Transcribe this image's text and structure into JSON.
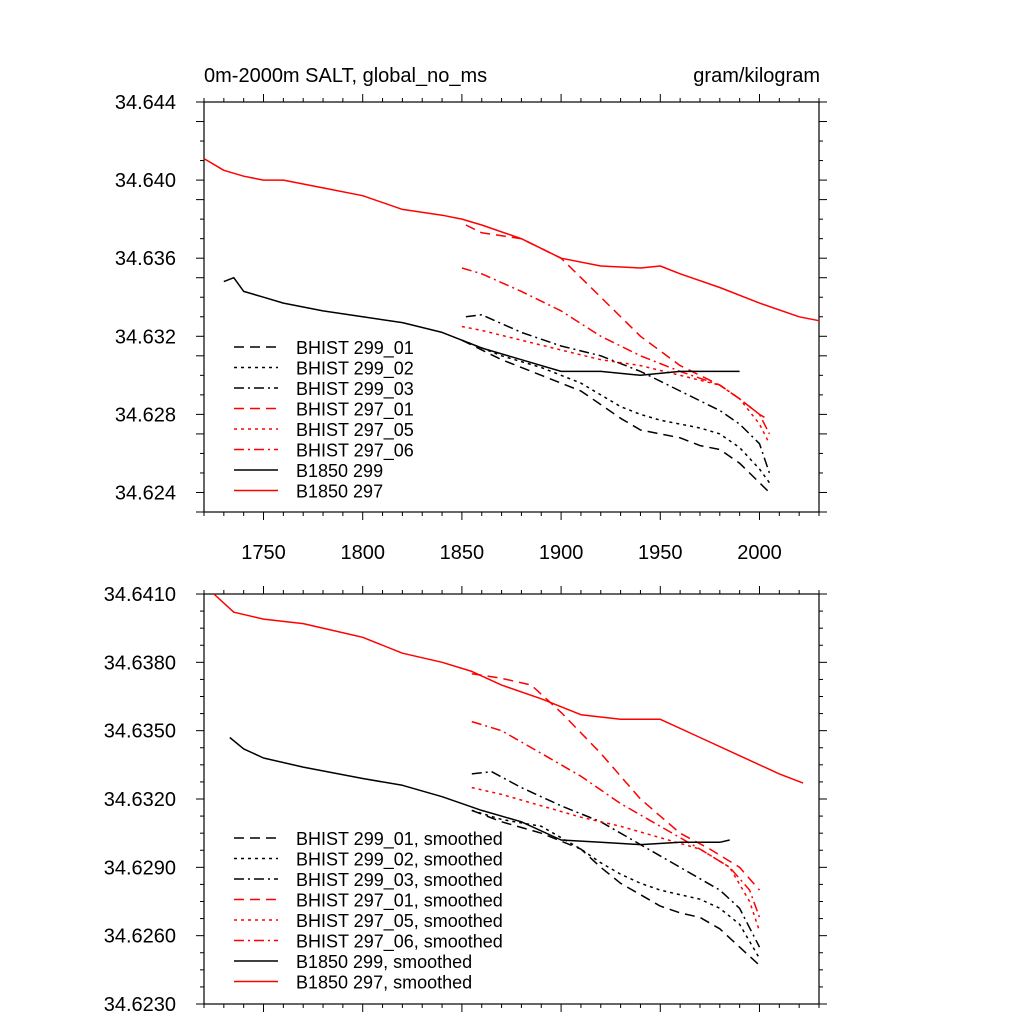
{
  "chart_data": [
    {
      "type": "line",
      "title": "0m-2000m SALT, global_no_ms",
      "units": "gram/kilogram",
      "xlim": [
        1720,
        2030
      ],
      "ylim": [
        34.623,
        34.644
      ],
      "xticks": [
        1750,
        1800,
        1850,
        1900,
        1950,
        2000
      ],
      "yticks": [
        34.624,
        34.628,
        34.632,
        34.636,
        34.64,
        34.644
      ],
      "ytick_labels": [
        "34.624",
        "34.628",
        "34.632",
        "34.636",
        "34.640",
        "34.644"
      ],
      "legend_position": "bottom-left",
      "series": [
        {
          "name": "BHIST 299_01",
          "color": "#000000",
          "dash": "dash",
          "x": [
            1850,
            1870,
            1890,
            1910,
            1920,
            1930,
            1940,
            1950,
            1960,
            1970,
            1980,
            1990,
            2000,
            2005
          ],
          "y": [
            34.6318,
            34.6308,
            34.63,
            34.6292,
            34.6285,
            34.6278,
            34.6272,
            34.627,
            34.6268,
            34.6264,
            34.6262,
            34.6255,
            34.6245,
            34.624
          ]
        },
        {
          "name": "BHIST 299_02",
          "color": "#000000",
          "dash": "dot",
          "x": [
            1850,
            1870,
            1890,
            1910,
            1920,
            1930,
            1940,
            1950,
            1960,
            1970,
            1980,
            1990,
            2000,
            2005
          ],
          "y": [
            34.6318,
            34.631,
            34.6304,
            34.6296,
            34.629,
            34.6284,
            34.628,
            34.6277,
            34.6275,
            34.6273,
            34.627,
            34.6263,
            34.6252,
            34.6245
          ]
        },
        {
          "name": "BHIST 299_03",
          "color": "#000000",
          "dash": "dashdot",
          "x": [
            1852,
            1860,
            1880,
            1900,
            1920,
            1940,
            1960,
            1980,
            1990,
            2000,
            2005
          ],
          "y": [
            34.633,
            34.6331,
            34.6322,
            34.6315,
            34.631,
            34.6302,
            34.6292,
            34.6282,
            34.6275,
            34.6265,
            34.625
          ]
        },
        {
          "name": "BHIST 297_01",
          "color": "#ff0000",
          "dash": "dash",
          "x": [
            1852,
            1860,
            1880,
            1900,
            1920,
            1940,
            1960,
            1980,
            1990,
            2000,
            2005
          ],
          "y": [
            34.6377,
            34.6373,
            34.637,
            34.636,
            34.634,
            34.632,
            34.6305,
            34.6295,
            34.6288,
            34.628,
            34.6277
          ]
        },
        {
          "name": "BHIST 297_05",
          "color": "#ff0000",
          "dash": "dot",
          "x": [
            1850,
            1860,
            1880,
            1900,
            1920,
            1940,
            1960,
            1980,
            1990,
            2000,
            2005
          ],
          "y": [
            34.6325,
            34.6323,
            34.6318,
            34.6313,
            34.6308,
            34.6305,
            34.63,
            34.6295,
            34.6288,
            34.6275,
            34.6265
          ]
        },
        {
          "name": "BHIST 297_06",
          "color": "#ff0000",
          "dash": "dashdot",
          "x": [
            1850,
            1860,
            1880,
            1900,
            1920,
            1940,
            1960,
            1980,
            1990,
            2000,
            2005
          ],
          "y": [
            34.6355,
            34.6352,
            34.6343,
            34.6333,
            34.632,
            34.631,
            34.6302,
            34.6295,
            34.6288,
            34.628,
            34.627
          ]
        },
        {
          "name": "B1850 299",
          "color": "#000000",
          "dash": "solid",
          "x": [
            1730,
            1735,
            1740,
            1750,
            1760,
            1780,
            1800,
            1820,
            1840,
            1850,
            1860,
            1880,
            1900,
            1920,
            1940,
            1960,
            1980,
            1990
          ],
          "y": [
            34.6348,
            34.635,
            34.6343,
            34.634,
            34.6337,
            34.6333,
            34.633,
            34.6327,
            34.6322,
            34.6318,
            34.6314,
            34.6308,
            34.6302,
            34.6302,
            34.63,
            34.6302,
            34.6302,
            34.6302
          ]
        },
        {
          "name": "B1850 297",
          "color": "#ff0000",
          "dash": "solid",
          "x": [
            1720,
            1730,
            1740,
            1750,
            1760,
            1780,
            1800,
            1820,
            1840,
            1850,
            1860,
            1880,
            1900,
            1920,
            1940,
            1950,
            1960,
            1980,
            2000,
            2020,
            2030
          ],
          "y": [
            34.6411,
            34.6405,
            34.6402,
            34.64,
            34.64,
            34.6396,
            34.6392,
            34.6385,
            34.6382,
            34.638,
            34.6377,
            34.637,
            34.636,
            34.6356,
            34.6355,
            34.6356,
            34.6352,
            34.6345,
            34.6337,
            34.633,
            34.6328
          ]
        }
      ]
    },
    {
      "type": "line",
      "title": "",
      "xlim": [
        1720,
        2030
      ],
      "ylim": [
        34.623,
        34.641
      ],
      "xticks": [
        1750,
        1800,
        1850,
        1900,
        1950,
        2000
      ],
      "yticks": [
        34.623,
        34.626,
        34.629,
        34.632,
        34.635,
        34.638,
        34.641
      ],
      "ytick_labels": [
        "34.6230",
        "34.6260",
        "34.6290",
        "34.6320",
        "34.6350",
        "34.6380",
        "34.6410"
      ],
      "legend_position": "bottom-left",
      "series": [
        {
          "name": "BHIST 299_01, smoothed",
          "color": "#000000",
          "dash": "dash",
          "x": [
            1855,
            1870,
            1890,
            1910,
            1920,
            1930,
            1940,
            1950,
            1960,
            1970,
            1980,
            1990,
            2000
          ],
          "y": [
            34.6315,
            34.631,
            34.6305,
            34.6298,
            34.629,
            34.6283,
            34.6278,
            34.6273,
            34.627,
            34.6268,
            34.6263,
            34.6255,
            34.6247
          ]
        },
        {
          "name": "BHIST 299_02, smoothed",
          "color": "#000000",
          "dash": "dot",
          "x": [
            1855,
            1870,
            1890,
            1910,
            1920,
            1930,
            1940,
            1950,
            1960,
            1970,
            1980,
            1990,
            2000
          ],
          "y": [
            34.6315,
            34.6311,
            34.6308,
            34.6298,
            34.6292,
            34.6287,
            34.6283,
            34.628,
            34.6278,
            34.6276,
            34.6272,
            34.6265,
            34.625
          ]
        },
        {
          "name": "BHIST 299_03, smoothed",
          "color": "#000000",
          "dash": "dashdot",
          "x": [
            1855,
            1865,
            1880,
            1900,
            1920,
            1940,
            1960,
            1980,
            1990,
            2000
          ],
          "y": [
            34.6331,
            34.6332,
            34.6325,
            34.6317,
            34.631,
            34.63,
            34.629,
            34.628,
            34.6272,
            34.6255
          ]
        },
        {
          "name": "BHIST 297_01, smoothed",
          "color": "#ff0000",
          "dash": "dash",
          "x": [
            1855,
            1870,
            1885,
            1900,
            1920,
            1940,
            1960,
            1975,
            1990,
            2000
          ],
          "y": [
            34.6375,
            34.6373,
            34.637,
            34.6358,
            34.634,
            34.632,
            34.6305,
            34.6298,
            34.629,
            34.628
          ]
        },
        {
          "name": "BHIST 297_05, smoothed",
          "color": "#ff0000",
          "dash": "dot",
          "x": [
            1855,
            1870,
            1890,
            1910,
            1930,
            1950,
            1970,
            1985,
            1995,
            2000
          ],
          "y": [
            34.6325,
            34.6322,
            34.6317,
            34.6312,
            34.6308,
            34.6303,
            34.6298,
            34.629,
            34.6275,
            34.6262
          ]
        },
        {
          "name": "BHIST 297_06, smoothed",
          "color": "#ff0000",
          "dash": "dashdot",
          "x": [
            1855,
            1870,
            1890,
            1910,
            1930,
            1950,
            1970,
            1985,
            1995,
            2000
          ],
          "y": [
            34.6354,
            34.635,
            34.634,
            34.633,
            34.6318,
            34.6308,
            34.6298,
            34.629,
            34.628,
            34.6268
          ]
        },
        {
          "name": "B1850 299, smoothed",
          "color": "#000000",
          "dash": "solid",
          "x": [
            1733,
            1740,
            1750,
            1770,
            1800,
            1820,
            1840,
            1860,
            1880,
            1900,
            1920,
            1940,
            1960,
            1980,
            1985
          ],
          "y": [
            34.6347,
            34.6342,
            34.6338,
            34.6334,
            34.6329,
            34.6326,
            34.6321,
            34.6315,
            34.631,
            34.6302,
            34.6301,
            34.63,
            34.6301,
            34.6301,
            34.6302
          ]
        },
        {
          "name": "B1850 297, smoothed",
          "color": "#ff0000",
          "dash": "solid",
          "x": [
            1725,
            1735,
            1750,
            1770,
            1800,
            1820,
            1840,
            1855,
            1870,
            1890,
            1910,
            1930,
            1950,
            1970,
            1990,
            2010,
            2022
          ],
          "y": [
            34.641,
            34.6402,
            34.6399,
            34.6397,
            34.6391,
            34.6384,
            34.638,
            34.6376,
            34.637,
            34.6364,
            34.6357,
            34.6355,
            34.6355,
            34.6347,
            34.6339,
            34.6331,
            34.6327
          ]
        }
      ]
    }
  ]
}
